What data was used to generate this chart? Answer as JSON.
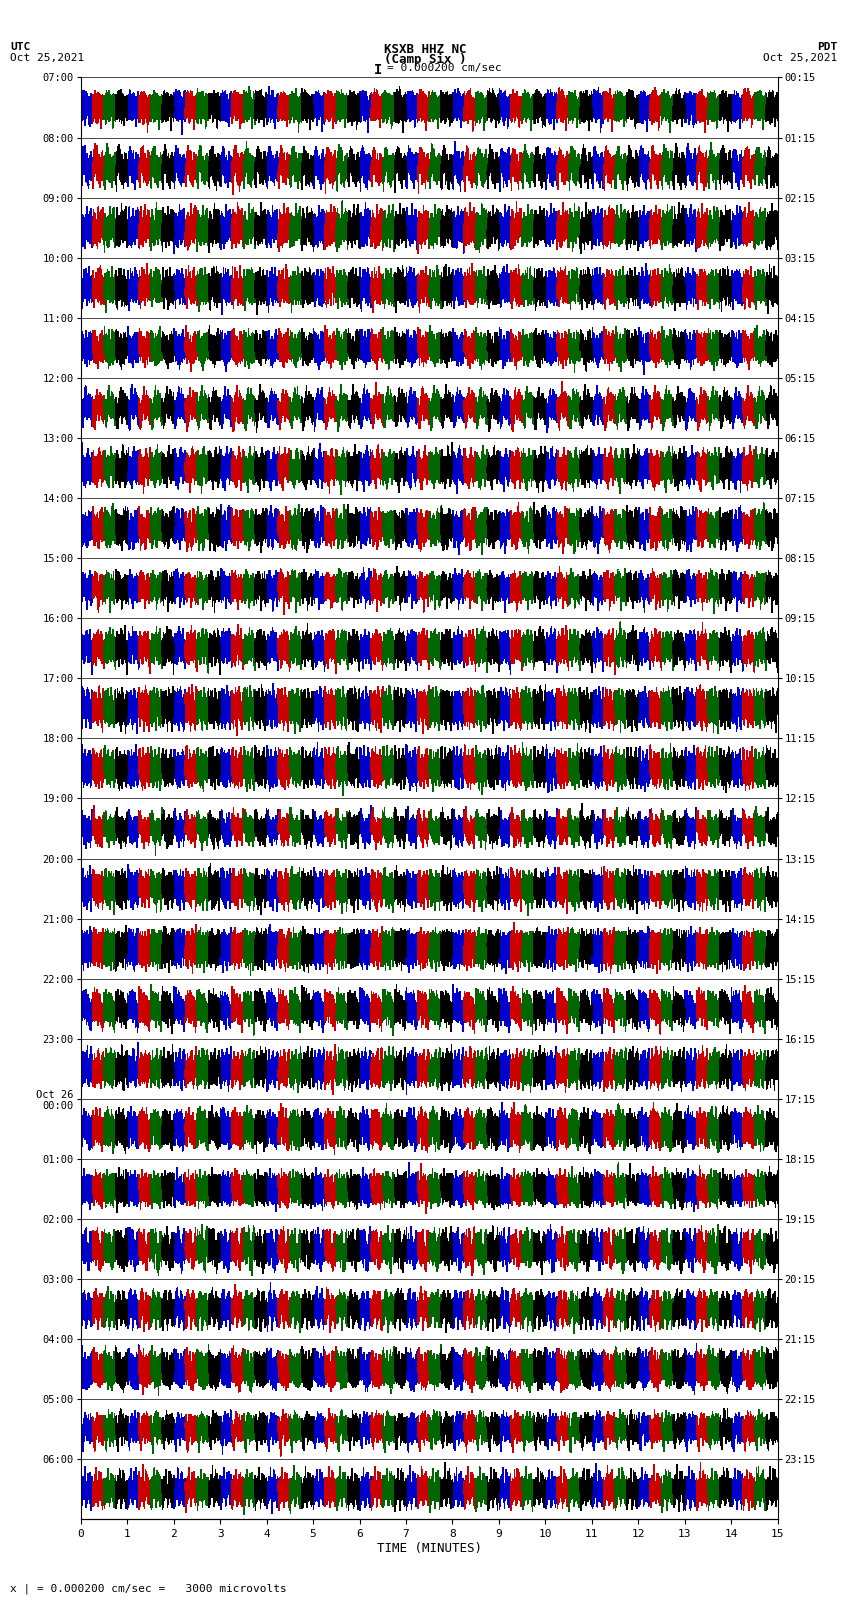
{
  "title_line1": "KSXB HHZ NC",
  "title_line2": "(Camp Six )",
  "scale_label": "= 0.000200 cm/sec",
  "scale_bar": "I",
  "bottom_label": "x | = 0.000200 cm/sec =   3000 microvolts",
  "xlabel": "TIME (MINUTES)",
  "utc_label": "UTC",
  "pdt_label": "PDT",
  "utc_date": "Oct 25,2021",
  "pdt_date": "Oct 25,2021",
  "left_times": [
    "07:00",
    "08:00",
    "09:00",
    "10:00",
    "11:00",
    "12:00",
    "13:00",
    "14:00",
    "15:00",
    "16:00",
    "17:00",
    "18:00",
    "19:00",
    "20:00",
    "21:00",
    "22:00",
    "23:00",
    "Oct 26\n00:00",
    "01:00",
    "02:00",
    "03:00",
    "04:00",
    "05:00",
    "06:00"
  ],
  "right_times": [
    "00:15",
    "01:15",
    "02:15",
    "03:15",
    "04:15",
    "05:15",
    "06:15",
    "07:15",
    "08:15",
    "09:15",
    "10:15",
    "11:15",
    "12:15",
    "13:15",
    "14:15",
    "15:15",
    "16:15",
    "17:15",
    "18:15",
    "19:15",
    "20:15",
    "21:15",
    "22:15",
    "23:15"
  ],
  "n_rows": 24,
  "n_minutes": 15,
  "samples_per_second": 100,
  "seconds_per_minute": 60,
  "colors": [
    "#0000cc",
    "#cc0000",
    "#006600",
    "#000000"
  ],
  "bg_color": "#ffffff",
  "figsize": [
    8.5,
    16.13
  ],
  "dpi": 100,
  "xlim": [
    0,
    15
  ],
  "xtick_interval": 1,
  "amplitude": 0.44,
  "n_color_segments": 4
}
